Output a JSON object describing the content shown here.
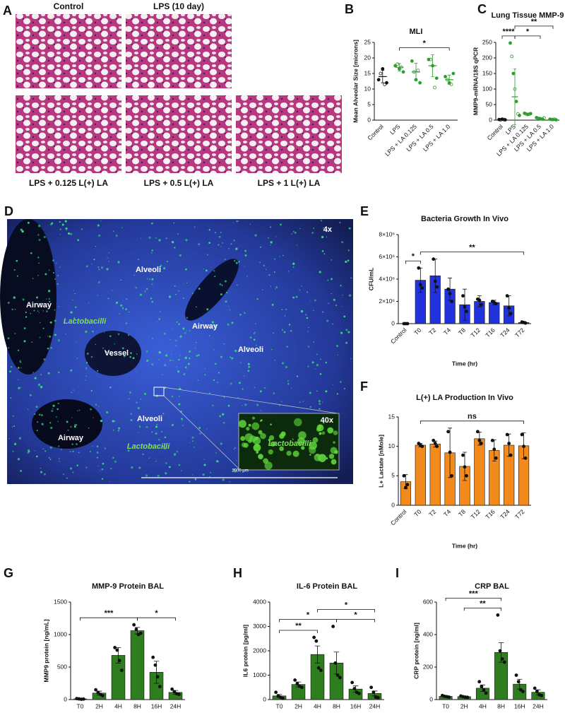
{
  "panel_a": {
    "panel": "A",
    "labels": [
      "Control",
      "LPS (10 day)",
      "LPS + 0.125 L(+) LA",
      "LPS + 0.5 L(+) LA",
      "LPS + 1 L(+) LA"
    ]
  },
  "panel_d": {
    "panel": "D",
    "labels": [
      "4x",
      "Alveoli",
      "Airway",
      "Lactobacilli",
      "Airway",
      "Vessel",
      "Alveoli",
      "Alveoli",
      "Airway",
      "Lactobacilli",
      "40x",
      "Lactobacilli",
      "1000 µm"
    ]
  },
  "chart_data": [
    {
      "type": "dot",
      "panel": "B",
      "title": "MLI",
      "ylabel": "Mean Alveolar Size [microns]",
      "categories": [
        "Control",
        "LPS",
        "LPS + LA 0.125",
        "LPS + LA 0.5",
        "LPS + LA 1.0"
      ],
      "colors": [
        "#111111",
        "#2e9e2e",
        "#2e9e2e",
        "#2e9e2e",
        "#2e9e2e"
      ],
      "means": [
        14,
        17,
        15.5,
        17.5,
        13
      ],
      "errors": [
        2,
        1.2,
        2.8,
        3.5,
        1.5
      ],
      "points": [
        [
          13,
          15,
          16.5,
          11.5,
          12
        ],
        [
          17.5,
          18,
          16.5,
          17,
          15.5
        ],
        [
          19,
          15.5,
          13,
          16,
          12
        ],
        [
          19.5,
          19.5,
          17.5,
          10.5,
          13.5
        ],
        [
          14,
          13,
          12,
          11.5,
          15
        ]
      ],
      "ylim": [
        0,
        25
      ],
      "yticks": [
        0,
        5,
        10,
        15,
        20,
        25
      ],
      "significance": [
        {
          "label": "*",
          "between": [
            "LPS",
            "LPS + LA 1.0"
          ]
        }
      ]
    },
    {
      "type": "dot",
      "panel": "C",
      "title": "Lung Tissue MMP-9",
      "ylabel": "MMP9-mRNA/18S qPCR",
      "categories": [
        "Control",
        "LPS",
        "LPS + LA 0.125",
        "LPS + LA 0.5",
        "LPS + LA 1.0"
      ],
      "colors": [
        "#111111",
        "#2e9e2e",
        "#2e9e2e",
        "#2e9e2e",
        "#2e9e2e"
      ],
      "means": [
        2,
        75,
        20,
        5,
        2
      ],
      "errors": [
        1,
        90,
        2,
        2,
        1
      ],
      "points": [
        [
          2,
          1,
          3,
          2,
          1
        ],
        [
          248,
          205,
          150,
          100,
          60,
          20,
          15
        ],
        [
          22,
          20,
          18,
          19,
          21
        ],
        [
          8,
          6,
          5,
          4,
          3,
          7
        ],
        [
          3,
          2,
          2,
          3,
          1
        ]
      ],
      "ylim": [
        0,
        250
      ],
      "yticks": [
        0,
        50,
        100,
        150,
        200,
        250
      ],
      "significance": [
        {
          "label": "****",
          "between": [
            "Control",
            "LPS"
          ]
        },
        {
          "label": "*",
          "between": [
            "LPS",
            "LPS + LA 0.5"
          ]
        },
        {
          "label": "**",
          "between": [
            "LPS",
            "LPS + LA 1.0"
          ]
        }
      ]
    },
    {
      "type": "bar",
      "panel": "E",
      "title": "Bacteria Growth In Vivo",
      "ylabel": "CFU/mL",
      "xlabel": "Time (hr)",
      "color": "#2233dd",
      "categories": [
        "Control",
        "T0",
        "T2",
        "T4",
        "T8",
        "T12",
        "T16",
        "T24",
        "T72"
      ],
      "values": [
        0,
        3900000,
        4300000,
        3100000,
        1700000,
        2000000,
        1900000,
        1600000,
        100000
      ],
      "errors": [
        0,
        1100000,
        1500000,
        1000000,
        1400000,
        500000,
        200000,
        900000,
        100000
      ],
      "points": [
        [
          0,
          0,
          0
        ],
        [
          5000000,
          3500000,
          3200000
        ],
        [
          5800000,
          3800000,
          3300000
        ],
        [
          3100000,
          2700000,
          2000000
        ],
        [
          2500000,
          1500000,
          1100000
        ],
        [
          2200000,
          2100000,
          1700000
        ],
        [
          2000000,
          1900000,
          1800000
        ],
        [
          2500000,
          1400000,
          900000
        ],
        [
          150000,
          100000,
          50000
        ]
      ],
      "ylim": [
        0,
        8000000
      ],
      "yticks": [
        0,
        {
          "value": 2000000,
          "label": "2×10⁶"
        },
        {
          "value": 4000000,
          "label": "4×10⁶"
        },
        {
          "value": 6000000,
          "label": "6×10⁶"
        },
        {
          "value": 8000000,
          "label": "8×10⁶"
        }
      ],
      "significance": [
        {
          "label": "*",
          "between": [
            "Control",
            "T0"
          ]
        },
        {
          "label": "**",
          "between": [
            "T0",
            "T72"
          ]
        }
      ]
    },
    {
      "type": "bar",
      "panel": "F",
      "title": "L(+) LA Production In Vivo",
      "ylabel": "L+ Lactate [nMole]",
      "xlabel": "Time (hr)",
      "color": "#f28a1c",
      "categories": [
        "Control",
        "T0",
        "T2",
        "T4",
        "T8",
        "T12",
        "T16",
        "T24",
        "T72"
      ],
      "values": [
        4,
        10.2,
        10.4,
        8.9,
        6.6,
        11.3,
        9.3,
        10.2,
        10.1
      ],
      "errors": [
        1.2,
        0.3,
        0.5,
        4.2,
        2.4,
        1.1,
        1.8,
        1.9,
        2.2
      ],
      "points": [
        [
          5,
          3,
          3.5
        ],
        [
          10.5,
          10.2,
          10
        ],
        [
          11,
          10.5,
          10
        ],
        [
          12.5,
          9,
          5
        ],
        [
          8.5,
          6.5,
          5
        ],
        [
          12.5,
          11,
          10.5
        ],
        [
          11,
          9.5,
          8
        ],
        [
          12,
          10.5,
          8.5
        ],
        [
          12,
          10,
          8
        ]
      ],
      "ylim": [
        0,
        15
      ],
      "yticks": [
        0,
        5,
        10,
        15
      ],
      "significance": [
        {
          "label": "ns",
          "between": [
            "T0",
            "T72"
          ]
        }
      ]
    },
    {
      "type": "bar",
      "panel": "G",
      "title": "MMP-9 Protein BAL",
      "ylabel": "MMP9 protein [ng/mL]",
      "color": "#2e7d1e",
      "categories": [
        "T0",
        "2H",
        "4H",
        "8H",
        "16H",
        "24H"
      ],
      "values": [
        10,
        100,
        680,
        1060,
        420,
        110
      ],
      "errors": [
        5,
        30,
        120,
        50,
        170,
        30
      ],
      "points": [
        [
          15,
          10,
          5,
          8
        ],
        [
          150,
          110,
          80,
          60
        ],
        [
          800,
          760,
          600,
          450
        ],
        [
          1150,
          1080,
          1000,
          1020
        ],
        [
          650,
          530,
          350,
          200
        ],
        [
          160,
          120,
          90,
          80
        ]
      ],
      "ylim": [
        0,
        1500
      ],
      "yticks": [
        0,
        500,
        1000,
        1500
      ],
      "significance": [
        {
          "label": "***",
          "between": [
            "T0",
            "8H"
          ]
        },
        {
          "label": "*",
          "between": [
            "8H",
            "24H"
          ]
        }
      ]
    },
    {
      "type": "bar",
      "panel": "H",
      "title": "IL-6 Protein BAL",
      "ylabel": "IL6 protein [pg/ml]",
      "color": "#2e7d1e",
      "categories": [
        "T0",
        "2H",
        "4H",
        "8H",
        "16H",
        "24H"
      ],
      "values": [
        150,
        620,
        1850,
        1500,
        430,
        250
      ],
      "errors": [
        60,
        100,
        350,
        450,
        130,
        100
      ],
      "points": [
        [
          300,
          150,
          100,
          50
        ],
        [
          800,
          650,
          550,
          500
        ],
        [
          2550,
          2400,
          1300,
          1200
        ],
        [
          3000,
          1500,
          1000,
          900
        ],
        [
          700,
          450,
          300,
          250
        ],
        [
          500,
          300,
          100,
          80
        ]
      ],
      "ylim": [
        0,
        4000
      ],
      "yticks": [
        0,
        1000,
        2000,
        3000,
        4000
      ],
      "significance": [
        {
          "label": "**",
          "between": [
            "T0",
            "4H"
          ]
        },
        {
          "label": "*",
          "between": [
            "8H",
            "24H"
          ]
        },
        {
          "label": "*",
          "between": [
            "T0",
            "8H"
          ]
        },
        {
          "label": "*",
          "between": [
            "4H",
            "24H"
          ]
        }
      ]
    },
    {
      "type": "bar",
      "panel": "I",
      "title": "CRP BAL",
      "ylabel": "CRP protein [ng/ml]",
      "color": "#2e7d1e",
      "categories": [
        "T0",
        "2H",
        "4H",
        "8H",
        "16H",
        "24H"
      ],
      "values": [
        20,
        18,
        70,
        290,
        95,
        45
      ],
      "errors": [
        3,
        3,
        20,
        60,
        30,
        15
      ],
      "points": [
        [
          25,
          20,
          18,
          15
        ],
        [
          22,
          18,
          15,
          14
        ],
        [
          110,
          80,
          60,
          40
        ],
        [
          520,
          300,
          250,
          230
        ],
        [
          150,
          110,
          60,
          50
        ],
        [
          70,
          50,
          30,
          25
        ]
      ],
      "ylim": [
        0,
        600
      ],
      "yticks": [
        0,
        200,
        400,
        600
      ],
      "significance": [
        {
          "label": "**",
          "between": [
            "2H",
            "8H"
          ]
        },
        {
          "label": "***",
          "between": [
            "T0",
            "8H"
          ]
        }
      ]
    }
  ]
}
